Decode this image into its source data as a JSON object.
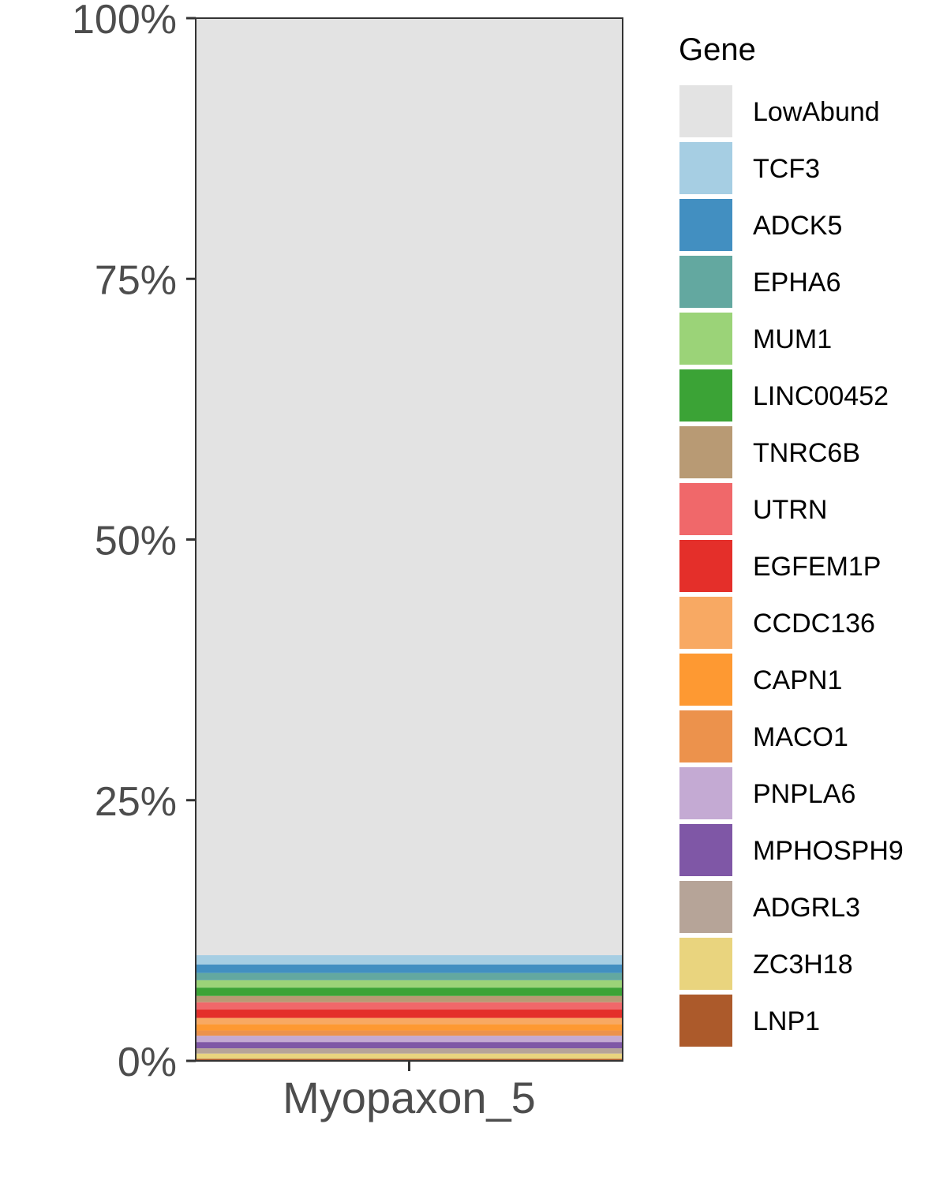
{
  "chart_data": {
    "type": "bar",
    "stacked": true,
    "percent": true,
    "categories": [
      "Myopaxon_5"
    ],
    "ylim": [
      0,
      100
    ],
    "yticks": [
      "0%",
      "25%",
      "50%",
      "75%",
      "100%"
    ],
    "ytick_values": [
      0,
      25,
      50,
      75,
      100
    ],
    "legend_title": "Gene",
    "legend_position": "right",
    "series": [
      {
        "name": "LowAbund",
        "values": [
          89.5
        ],
        "color": "#e3e3e3"
      },
      {
        "name": "TCF3",
        "values": [
          0.9
        ],
        "color": "#a6cee3"
      },
      {
        "name": "ADCK5",
        "values": [
          0.8
        ],
        "color": "#428fc1"
      },
      {
        "name": "EPHA6",
        "values": [
          0.7
        ],
        "color": "#63a8a0"
      },
      {
        "name": "MUM1",
        "values": [
          0.7
        ],
        "color": "#9bd378"
      },
      {
        "name": "LINC00452",
        "values": [
          0.8
        ],
        "color": "#3ba336"
      },
      {
        "name": "TNRC6B",
        "values": [
          0.6
        ],
        "color": "#b89a74"
      },
      {
        "name": "UTRN",
        "values": [
          0.7
        ],
        "color": "#f0686a"
      },
      {
        "name": "EGFEM1P",
        "values": [
          0.8
        ],
        "color": "#e42f2a"
      },
      {
        "name": "CCDC136",
        "values": [
          0.6
        ],
        "color": "#f8a963"
      },
      {
        "name": "CAPN1",
        "values": [
          0.6
        ],
        "color": "#fe9932"
      },
      {
        "name": "MACO1",
        "values": [
          0.5
        ],
        "color": "#ec924c"
      },
      {
        "name": "PNPLA6",
        "values": [
          0.6
        ],
        "color": "#c4aad3"
      },
      {
        "name": "MPHOSPH9",
        "values": [
          0.6
        ],
        "color": "#7f57a6"
      },
      {
        "name": "ADGRL3",
        "values": [
          0.5
        ],
        "color": "#b6a498"
      },
      {
        "name": "ZC3H18",
        "values": [
          0.5
        ],
        "color": "#e9d47e"
      },
      {
        "name": "LNP1",
        "values": [
          0.2
        ],
        "color": "#ac5a2b"
      }
    ]
  }
}
